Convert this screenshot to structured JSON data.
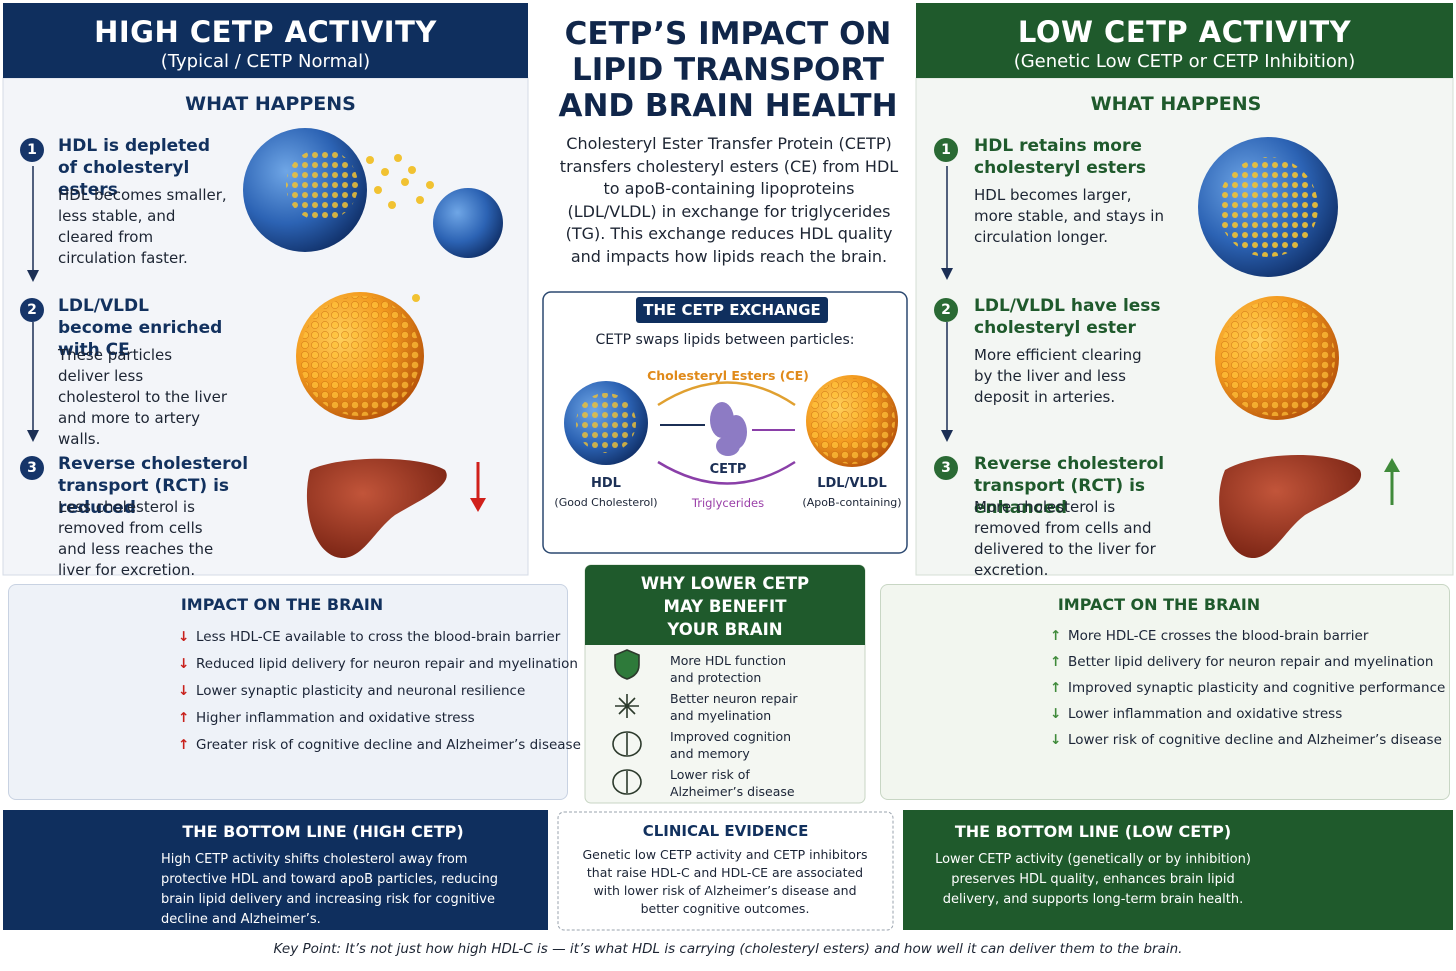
{
  "high": {
    "title": "HIGH CETP ACTIVITY",
    "subtitle": "(Typical / CETP Normal)",
    "what_happens": "WHAT HAPPENS",
    "steps": [
      {
        "number": "1",
        "title": "HDL is depleted of cholesteryl esters",
        "text": "HDL becomes smaller, less stable, and cleared from circulation faster."
      },
      {
        "number": "2",
        "title": "LDL/VLDL become enriched with CE",
        "text": "These particles deliver less cholesterol to the liver and more to artery walls."
      },
      {
        "number": "3",
        "title": "Reverse cholesterol transport (RCT) is reduced",
        "text": "Less cholesterol is removed from cells and less reaches the liver for excretion."
      }
    ],
    "brain": {
      "title": "IMPACT ON THE BRAIN",
      "items": [
        {
          "trend": "down",
          "text": "Less HDL-CE available to cross the blood-brain barrier"
        },
        {
          "trend": "down",
          "text": "Reduced lipid delivery for neuron repair and myelination"
        },
        {
          "trend": "down",
          "text": "Lower synaptic plasticity and neuronal resilience"
        },
        {
          "trend": "up",
          "text": "Higher inflammation and oxidative stress"
        },
        {
          "trend": "up",
          "text": "Greater risk of cognitive decline and Alzheimer’s disease"
        }
      ]
    },
    "bottom_line": {
      "title": "THE BOTTOM LINE (HIGH CETP)",
      "text": "High CETP activity shifts cholesterol away from protective HDL and toward apoB particles, reducing brain lipid delivery and increasing risk for cognitive decline and Alzheimer’s."
    }
  },
  "center": {
    "title": [
      "CETP’S IMPACT ON",
      "LIPID TRANSPORT",
      "AND BRAIN HEALTH"
    ],
    "intro": "Cholesteryl Ester Transfer Protein (CETP) transfers cholesteryl esters (CE) from HDL to apoB-containing lipoproteins (LDL/VLDL) in exchange for triglycerides (TG). This exchange reduces HDL quality and impacts how lipids reach the brain.",
    "exchange": {
      "title": "THE CETP EXCHANGE",
      "subtitle": "CETP swaps lipids between particles:",
      "ce_label": "Cholesteryl Esters (CE)",
      "cetp_label": "CETP",
      "tg_label": "Triglycerides",
      "hdl_label": "HDL",
      "hdl_sub": "(Good Cholesterol)",
      "ldl_label": "LDL/VLDL",
      "ldl_sub": "(ApoB-containing)"
    },
    "why": {
      "title": [
        "WHY LOWER CETP",
        "MAY BENEFIT",
        "YOUR BRAIN"
      ],
      "items": [
        "More HDL function and protection",
        "Better neuron repair and myelination",
        "Improved cognition and memory",
        "Lower risk of Alzheimer’s disease"
      ]
    },
    "clinical": {
      "title": "CLINICAL EVIDENCE",
      "text": "Genetic low CETP activity and CETP inhibitors that raise HDL-C and HDL-CE are associated with lower risk of Alzheimer’s disease and better cognitive outcomes."
    }
  },
  "low": {
    "title": "LOW CETP ACTIVITY",
    "subtitle": "(Genetic Low CETP or CETP Inhibition)",
    "what_happens": "WHAT HAPPENS",
    "steps": [
      {
        "number": "1",
        "title": "HDL retains more cholesteryl esters",
        "text": "HDL becomes larger, more stable, and stays in circulation longer."
      },
      {
        "number": "2",
        "title": "LDL/VLDL have less cholesteryl ester",
        "text": "More efficient clearing by the liver and less deposit in arteries."
      },
      {
        "number": "3",
        "title": "Reverse cholesterol transport (RCT) is enhanced",
        "text": "More cholesterol is removed from cells and delivered to the liver for excretion."
      }
    ],
    "brain": {
      "title": "IMPACT ON THE BRAIN",
      "items": [
        {
          "trend": "up",
          "text": "More HDL-CE crosses the blood-brain barrier"
        },
        {
          "trend": "up",
          "text": "Better lipid delivery for neuron repair and myelination"
        },
        {
          "trend": "up",
          "text": "Improved synaptic plasticity and cognitive performance"
        },
        {
          "trend": "down",
          "text": "Lower inflammation and oxidative stress"
        },
        {
          "trend": "down",
          "text": "Lower risk of cognitive decline and Alzheimer’s disease"
        }
      ]
    },
    "bottom_line": {
      "title": "THE BOTTOM LINE (LOW CETP)",
      "text": "Lower CETP activity (genetically or by inhibition) preserves HDL quality, enhances brain lipid delivery, and supports long-term brain health."
    }
  },
  "key_point": "Key Point: It’s not just how high HDL-C is — it’s what HDL is carrying (cholesteryl esters) and how well it can deliver them to the brain."
}
